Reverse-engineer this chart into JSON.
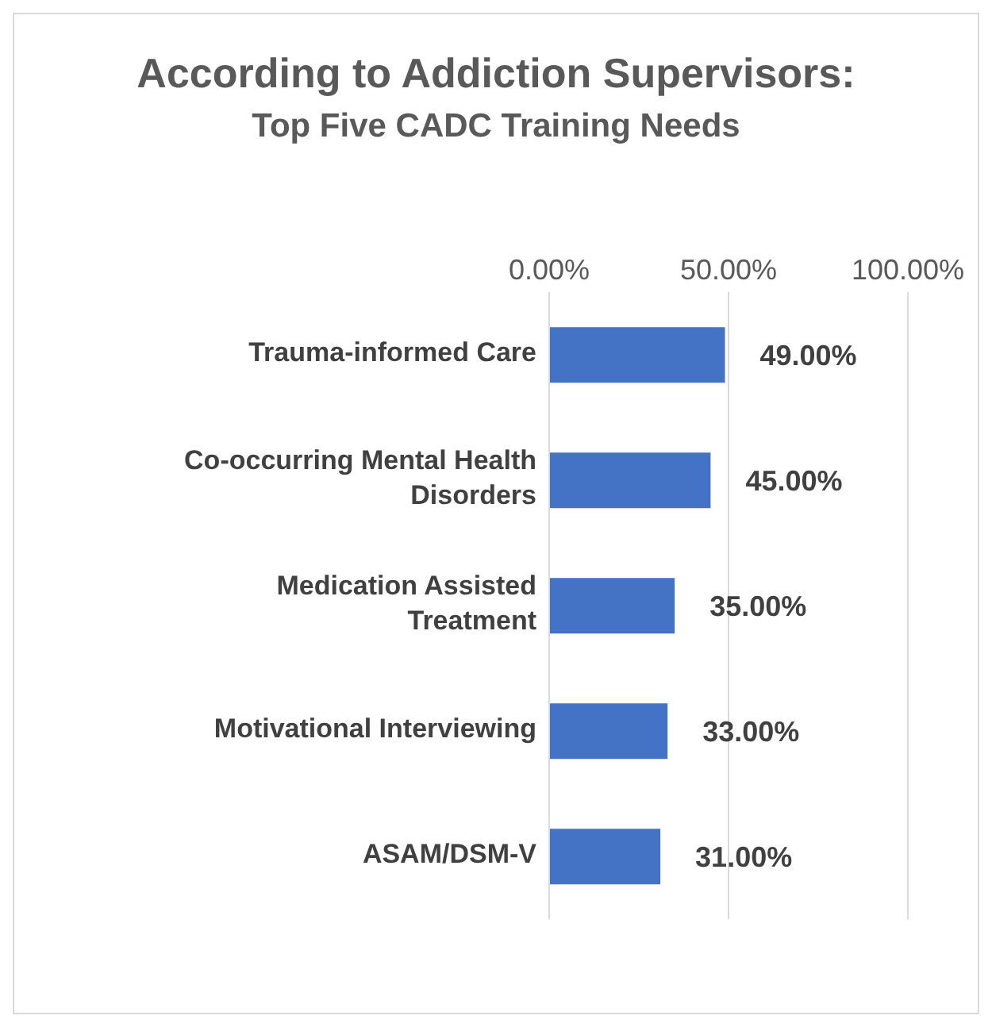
{
  "chart_data": {
    "type": "bar",
    "orientation": "horizontal",
    "title": "According to Addiction Supervisors:",
    "subtitle": "Top Five CADC Training Needs",
    "categories": [
      "Trauma-informed Care",
      "Co-occurring Mental Health Disorders",
      "Medication Assisted Treatment",
      "Motivational Interviewing",
      "ASAM/DSM-V"
    ],
    "values": [
      49,
      45,
      35,
      33,
      31
    ],
    "value_labels": [
      "49.00%",
      "45.00%",
      "35.00%",
      "33.00%",
      "31.00%"
    ],
    "color": "#4472c4",
    "xlim": [
      0,
      100
    ],
    "xticks": [
      {
        "value": 0,
        "label": "0.00%"
      },
      {
        "value": 50,
        "label": "50.00%"
      },
      {
        "value": 100,
        "label": "100.00%"
      }
    ],
    "grid": "x"
  }
}
